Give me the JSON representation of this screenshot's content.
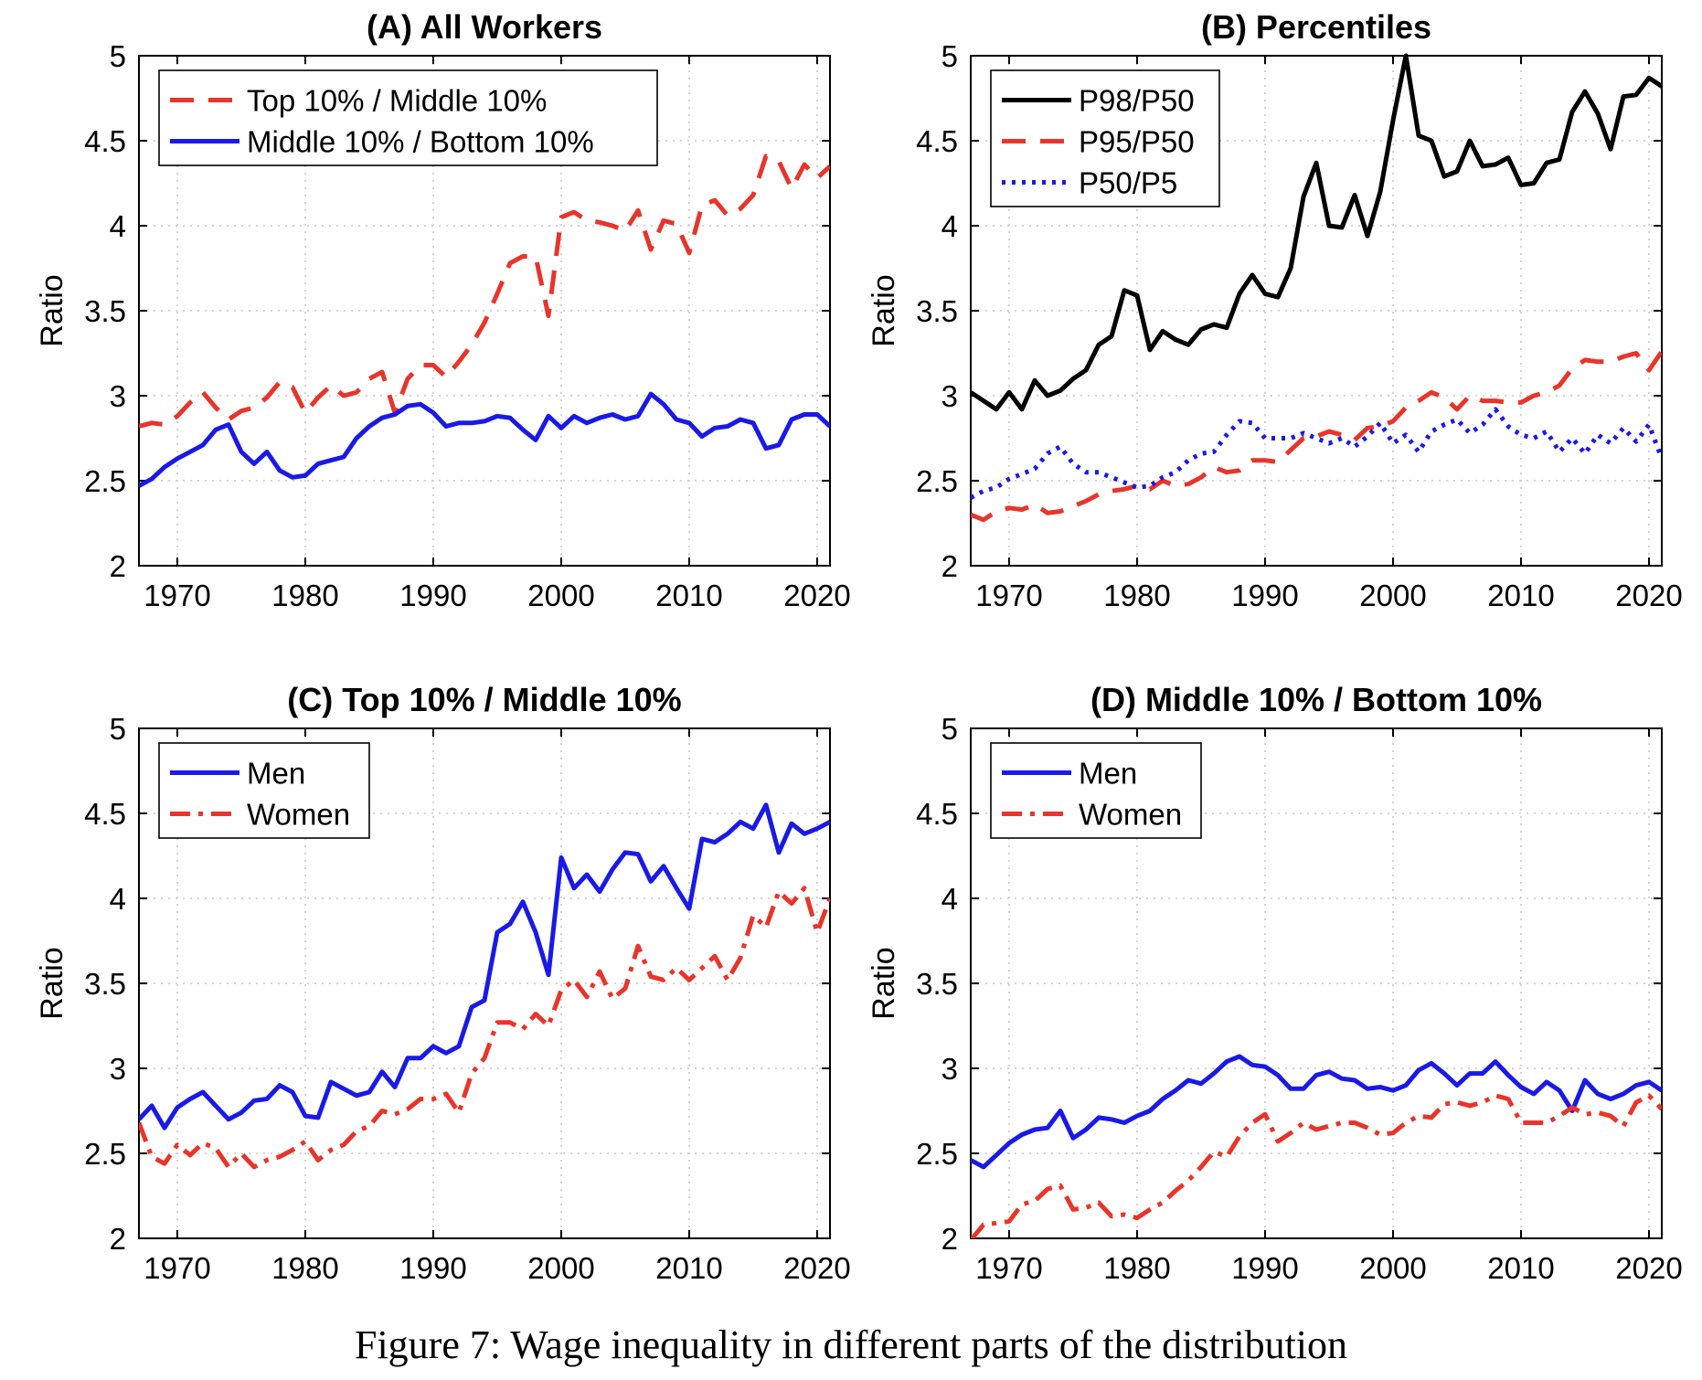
{
  "caption": "Figure 7: Wage inequality in different parts of the distribution",
  "chart_data": [
    {
      "type": "line",
      "title": "(A) All Workers",
      "xlabel": "",
      "ylabel": "Ratio",
      "xlim": [
        1967,
        2021
      ],
      "ylim": [
        2,
        5
      ],
      "xticks": [
        1970,
        1980,
        1990,
        2000,
        2010,
        2020
      ],
      "yticks": [
        2,
        2.5,
        3,
        3.5,
        4,
        4.5,
        5
      ],
      "ytick_labels": [
        "2",
        "2.5",
        "3",
        "3.5",
        "4",
        "4.5",
        "5"
      ],
      "grid": true,
      "legend_position": "top-left",
      "x": [
        1967,
        1968,
        1969,
        1970,
        1971,
        1972,
        1973,
        1974,
        1975,
        1976,
        1977,
        1978,
        1979,
        1980,
        1981,
        1982,
        1983,
        1984,
        1985,
        1986,
        1987,
        1988,
        1989,
        1990,
        1991,
        1992,
        1993,
        1994,
        1995,
        1996,
        1997,
        1998,
        1999,
        2000,
        2001,
        2002,
        2003,
        2004,
        2005,
        2006,
        2007,
        2008,
        2009,
        2010,
        2011,
        2012,
        2013,
        2014,
        2015,
        2016,
        2017,
        2018,
        2019,
        2020,
        2021
      ],
      "series": [
        {
          "name": "Top 10% / Middle 10%",
          "color": "#e8352b",
          "style": "dash",
          "values": [
            2.82,
            2.84,
            2.83,
            2.88,
            2.96,
            3.02,
            2.93,
            2.86,
            2.91,
            2.93,
            2.99,
            3.08,
            3.05,
            2.9,
            2.99,
            3.06,
            3.0,
            3.02,
            3.1,
            3.14,
            2.9,
            3.1,
            3.18,
            3.18,
            3.11,
            3.2,
            3.3,
            3.43,
            3.6,
            3.78,
            3.82,
            3.82,
            3.47,
            4.05,
            4.08,
            4.03,
            4.02,
            4.0,
            3.97,
            4.09,
            3.86,
            4.03,
            4.01,
            3.84,
            4.12,
            4.15,
            4.06,
            4.1,
            4.18,
            4.41,
            4.38,
            4.22,
            4.36,
            4.28,
            4.35
          ]
        },
        {
          "name": "Middle 10% / Bottom 10%",
          "color": "#1a1ae6",
          "style": "solid",
          "values": [
            2.47,
            2.51,
            2.58,
            2.63,
            2.67,
            2.71,
            2.8,
            2.83,
            2.67,
            2.6,
            2.67,
            2.56,
            2.52,
            2.53,
            2.6,
            2.62,
            2.64,
            2.75,
            2.82,
            2.87,
            2.89,
            2.94,
            2.95,
            2.9,
            2.82,
            2.84,
            2.84,
            2.85,
            2.88,
            2.87,
            2.8,
            2.74,
            2.88,
            2.81,
            2.88,
            2.84,
            2.87,
            2.89,
            2.86,
            2.88,
            3.01,
            2.95,
            2.86,
            2.84,
            2.76,
            2.81,
            2.82,
            2.86,
            2.84,
            2.69,
            2.71,
            2.86,
            2.89,
            2.89,
            2.82
          ]
        }
      ]
    },
    {
      "type": "line",
      "title": "(B) Percentiles",
      "xlabel": "",
      "ylabel": "Ratio",
      "xlim": [
        1967,
        2021
      ],
      "ylim": [
        2,
        5
      ],
      "xticks": [
        1970,
        1980,
        1990,
        2000,
        2010,
        2020
      ],
      "yticks": [
        2,
        2.5,
        3,
        3.5,
        4,
        4.5,
        5
      ],
      "ytick_labels": [
        "2",
        "2.5",
        "3",
        "3.5",
        "4",
        "4.5",
        "5"
      ],
      "grid": true,
      "legend_position": "top-left",
      "x": [
        1967,
        1968,
        1969,
        1970,
        1971,
        1972,
        1973,
        1974,
        1975,
        1976,
        1977,
        1978,
        1979,
        1980,
        1981,
        1982,
        1983,
        1984,
        1985,
        1986,
        1987,
        1988,
        1989,
        1990,
        1991,
        1992,
        1993,
        1994,
        1995,
        1996,
        1997,
        1998,
        1999,
        2000,
        2001,
        2002,
        2003,
        2004,
        2005,
        2006,
        2007,
        2008,
        2009,
        2010,
        2011,
        2012,
        2013,
        2014,
        2015,
        2016,
        2017,
        2018,
        2019,
        2020,
        2021
      ],
      "series": [
        {
          "name": "P98/P50",
          "color": "#000000",
          "style": "solid",
          "values": [
            3.02,
            2.97,
            2.92,
            3.02,
            2.92,
            3.09,
            3.0,
            3.03,
            3.1,
            3.15,
            3.3,
            3.35,
            3.62,
            3.59,
            3.27,
            3.38,
            3.33,
            3.3,
            3.39,
            3.42,
            3.4,
            3.6,
            3.71,
            3.6,
            3.58,
            3.75,
            4.17,
            4.37,
            4.0,
            3.99,
            4.18,
            3.94,
            4.2,
            4.62,
            5.0,
            4.53,
            4.5,
            4.29,
            4.32,
            4.5,
            4.35,
            4.36,
            4.4,
            4.24,
            4.25,
            4.37,
            4.39,
            4.67,
            4.79,
            4.66,
            4.45,
            4.76,
            4.77,
            4.87,
            4.82
          ]
        },
        {
          "name": "P95/P50",
          "color": "#e8352b",
          "style": "dash",
          "values": [
            2.3,
            2.27,
            2.32,
            2.34,
            2.33,
            2.36,
            2.31,
            2.32,
            2.35,
            2.38,
            2.42,
            2.44,
            2.45,
            2.47,
            2.45,
            2.5,
            2.47,
            2.48,
            2.52,
            2.58,
            2.55,
            2.56,
            2.62,
            2.62,
            2.61,
            2.68,
            2.75,
            2.76,
            2.79,
            2.77,
            2.74,
            2.81,
            2.82,
            2.85,
            2.93,
            2.97,
            3.02,
            2.99,
            2.92,
            3.0,
            2.97,
            2.97,
            2.96,
            2.96,
            3.0,
            3.02,
            3.06,
            3.16,
            3.21,
            3.2,
            3.2,
            3.23,
            3.25,
            3.15,
            3.26
          ]
        },
        {
          "name": "P50/P5",
          "color": "#1a1ae6",
          "style": "dot",
          "values": [
            2.4,
            2.44,
            2.46,
            2.51,
            2.54,
            2.57,
            2.66,
            2.7,
            2.6,
            2.55,
            2.55,
            2.52,
            2.49,
            2.46,
            2.47,
            2.52,
            2.55,
            2.62,
            2.66,
            2.67,
            2.77,
            2.85,
            2.84,
            2.75,
            2.75,
            2.75,
            2.78,
            2.75,
            2.72,
            2.75,
            2.7,
            2.76,
            2.84,
            2.72,
            2.77,
            2.67,
            2.79,
            2.83,
            2.86,
            2.78,
            2.83,
            2.92,
            2.82,
            2.77,
            2.75,
            2.79,
            2.67,
            2.75,
            2.66,
            2.77,
            2.72,
            2.81,
            2.73,
            2.83,
            2.63
          ]
        }
      ]
    },
    {
      "type": "line",
      "title": "(C) Top 10% / Middle 10%",
      "xlabel": "",
      "ylabel": "Ratio",
      "xlim": [
        1967,
        2021
      ],
      "ylim": [
        2,
        5
      ],
      "xticks": [
        1970,
        1980,
        1990,
        2000,
        2010,
        2020
      ],
      "yticks": [
        2,
        2.5,
        3,
        3.5,
        4,
        4.5,
        5
      ],
      "ytick_labels": [
        "2",
        "2.5",
        "3",
        "3.5",
        "4",
        "4.5",
        "5"
      ],
      "grid": true,
      "legend_position": "top-left",
      "x": [
        1967,
        1968,
        1969,
        1970,
        1971,
        1972,
        1973,
        1974,
        1975,
        1976,
        1977,
        1978,
        1979,
        1980,
        1981,
        1982,
        1983,
        1984,
        1985,
        1986,
        1987,
        1988,
        1989,
        1990,
        1991,
        1992,
        1993,
        1994,
        1995,
        1996,
        1997,
        1998,
        1999,
        2000,
        2001,
        2002,
        2003,
        2004,
        2005,
        2006,
        2007,
        2008,
        2009,
        2010,
        2011,
        2012,
        2013,
        2014,
        2015,
        2016,
        2017,
        2018,
        2019,
        2020,
        2021
      ],
      "series": [
        {
          "name": "Men",
          "color": "#1a1ae6",
          "style": "solid",
          "values": [
            2.7,
            2.78,
            2.65,
            2.77,
            2.82,
            2.86,
            2.78,
            2.7,
            2.74,
            2.81,
            2.82,
            2.9,
            2.86,
            2.72,
            2.71,
            2.92,
            2.88,
            2.84,
            2.86,
            2.98,
            2.89,
            3.06,
            3.06,
            3.13,
            3.09,
            3.13,
            3.36,
            3.4,
            3.8,
            3.85,
            3.98,
            3.8,
            3.55,
            4.24,
            4.06,
            4.14,
            4.04,
            4.17,
            4.27,
            4.26,
            4.1,
            4.19,
            4.06,
            3.94,
            4.35,
            4.33,
            4.38,
            4.45,
            4.41,
            4.55,
            4.27,
            4.44,
            4.38,
            4.41,
            4.45
          ]
        },
        {
          "name": "Women",
          "color": "#e8352b",
          "style": "dashdot",
          "values": [
            2.68,
            2.48,
            2.44,
            2.55,
            2.49,
            2.56,
            2.53,
            2.42,
            2.5,
            2.42,
            2.46,
            2.48,
            2.52,
            2.57,
            2.46,
            2.52,
            2.55,
            2.63,
            2.66,
            2.75,
            2.73,
            2.76,
            2.82,
            2.82,
            2.85,
            2.74,
            2.97,
            3.06,
            3.27,
            3.27,
            3.23,
            3.32,
            3.25,
            3.46,
            3.52,
            3.42,
            3.57,
            3.41,
            3.47,
            3.72,
            3.54,
            3.52,
            3.59,
            3.52,
            3.59,
            3.66,
            3.52,
            3.65,
            3.9,
            3.83,
            4.04,
            3.97,
            4.06,
            3.8,
            4.0
          ]
        }
      ]
    },
    {
      "type": "line",
      "title": "(D) Middle 10% / Bottom 10%",
      "xlabel": "",
      "ylabel": "Ratio",
      "xlim": [
        1967,
        2021
      ],
      "ylim": [
        2,
        5
      ],
      "xticks": [
        1970,
        1980,
        1990,
        2000,
        2010,
        2020
      ],
      "yticks": [
        2,
        2.5,
        3,
        3.5,
        4,
        4.5,
        5
      ],
      "ytick_labels": [
        "2",
        "2.5",
        "3",
        "3.5",
        "4",
        "4.5",
        "5"
      ],
      "grid": true,
      "legend_position": "top-left",
      "x": [
        1967,
        1968,
        1969,
        1970,
        1971,
        1972,
        1973,
        1974,
        1975,
        1976,
        1977,
        1978,
        1979,
        1980,
        1981,
        1982,
        1983,
        1984,
        1985,
        1986,
        1987,
        1988,
        1989,
        1990,
        1991,
        1992,
        1993,
        1994,
        1995,
        1996,
        1997,
        1998,
        1999,
        2000,
        2001,
        2002,
        2003,
        2004,
        2005,
        2006,
        2007,
        2008,
        2009,
        2010,
        2011,
        2012,
        2013,
        2014,
        2015,
        2016,
        2017,
        2018,
        2019,
        2020,
        2021
      ],
      "series": [
        {
          "name": "Men",
          "color": "#1a1ae6",
          "style": "solid",
          "values": [
            2.46,
            2.42,
            2.49,
            2.56,
            2.61,
            2.64,
            2.65,
            2.75,
            2.59,
            2.64,
            2.71,
            2.7,
            2.68,
            2.72,
            2.75,
            2.82,
            2.87,
            2.93,
            2.91,
            2.97,
            3.04,
            3.07,
            3.02,
            3.01,
            2.96,
            2.88,
            2.88,
            2.96,
            2.98,
            2.94,
            2.93,
            2.88,
            2.89,
            2.87,
            2.9,
            2.99,
            3.03,
            2.97,
            2.9,
            2.97,
            2.97,
            3.04,
            2.96,
            2.89,
            2.85,
            2.92,
            2.87,
            2.75,
            2.93,
            2.85,
            2.82,
            2.85,
            2.9,
            2.92,
            2.87
          ]
        },
        {
          "name": "Women",
          "color": "#e8352b",
          "style": "dashdot",
          "values": [
            1.99,
            2.08,
            2.09,
            2.1,
            2.2,
            2.22,
            2.29,
            2.31,
            2.17,
            2.18,
            2.21,
            2.13,
            2.14,
            2.12,
            2.17,
            2.21,
            2.28,
            2.34,
            2.42,
            2.51,
            2.48,
            2.6,
            2.68,
            2.73,
            2.57,
            2.62,
            2.68,
            2.64,
            2.66,
            2.68,
            2.68,
            2.65,
            2.61,
            2.62,
            2.68,
            2.72,
            2.71,
            2.79,
            2.8,
            2.78,
            2.8,
            2.84,
            2.82,
            2.68,
            2.68,
            2.68,
            2.72,
            2.77,
            2.73,
            2.74,
            2.72,
            2.66,
            2.8,
            2.84,
            2.76
          ]
        }
      ]
    }
  ]
}
